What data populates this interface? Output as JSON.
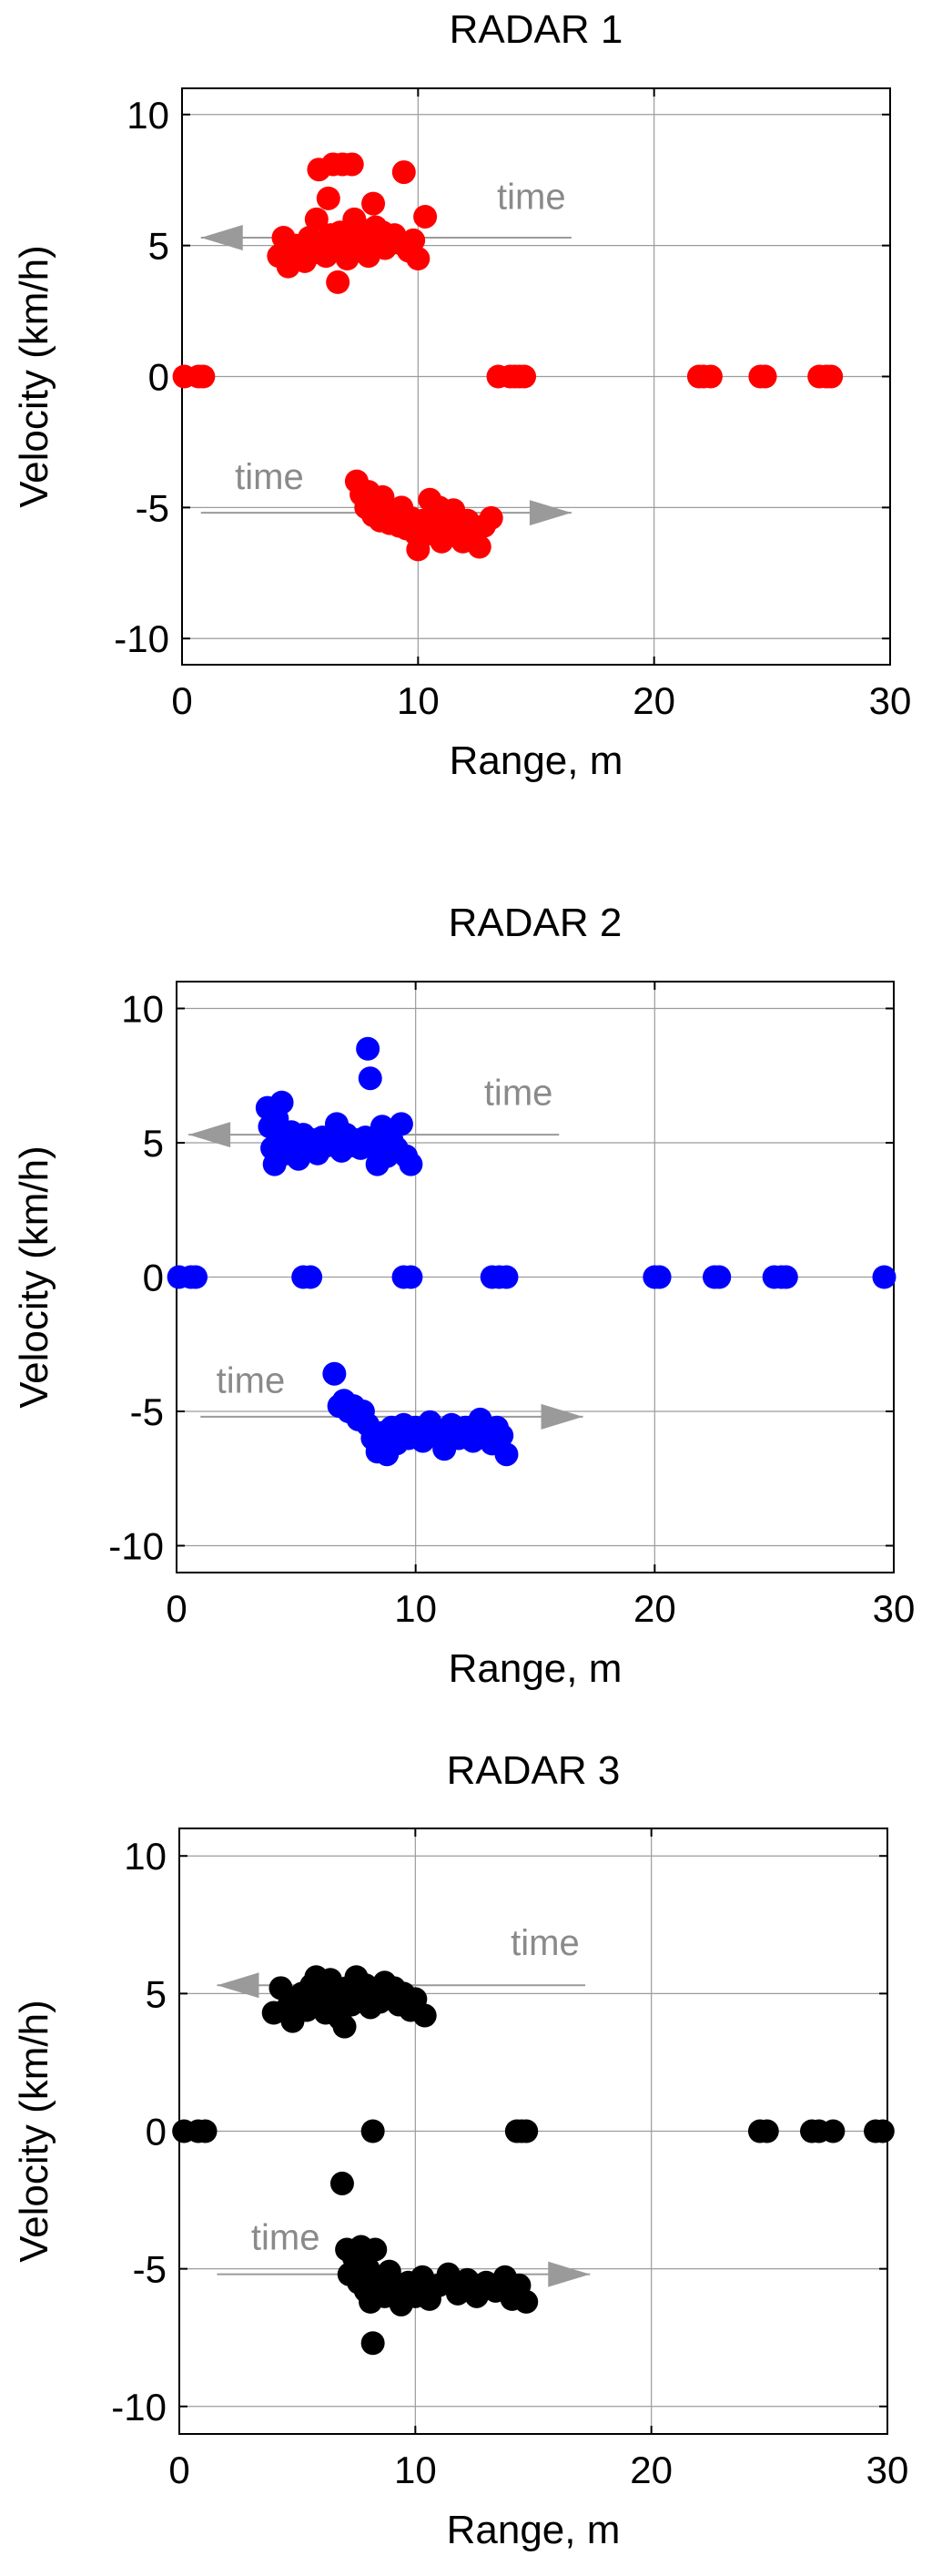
{
  "chart_data": [
    {
      "type": "scatter",
      "title": "RADAR 1",
      "xlabel": "Range, m",
      "ylabel": "Velocity (km/h)",
      "xlim": [
        0,
        30
      ],
      "ylim": [
        -11,
        11
      ],
      "xticks": [
        0,
        10,
        20,
        30
      ],
      "yticks": [
        10,
        5,
        0,
        -5,
        -10
      ],
      "grid": true,
      "color": "#ff0000",
      "annotations": [
        {
          "text": "time",
          "arrow": "left",
          "x_from": 16.5,
          "x_to": 0.8,
          "y": 5.3,
          "label_x": 14.8,
          "label_y": 6.4
        },
        {
          "text": "time",
          "arrow": "right",
          "x_from": 0.8,
          "x_to": 16.5,
          "y": -5.2,
          "label_x": 3.7,
          "label_y": -4.3
        }
      ],
      "points": [
        [
          0.1,
          0
        ],
        [
          0.7,
          0
        ],
        [
          0.9,
          0
        ],
        [
          13.4,
          0
        ],
        [
          13.9,
          0
        ],
        [
          14.1,
          0
        ],
        [
          14.3,
          0
        ],
        [
          14.5,
          0
        ],
        [
          21.9,
          0
        ],
        [
          22.1,
          0
        ],
        [
          22.4,
          0
        ],
        [
          24.5,
          0
        ],
        [
          24.7,
          0
        ],
        [
          27.0,
          0
        ],
        [
          27.3,
          0
        ],
        [
          27.5,
          0
        ],
        [
          4.1,
          4.6
        ],
        [
          4.3,
          5.3
        ],
        [
          4.5,
          4.2
        ],
        [
          4.8,
          5.0
        ],
        [
          5.0,
          4.8
        ],
        [
          5.2,
          4.4
        ],
        [
          5.4,
          5.3
        ],
        [
          5.5,
          4.7
        ],
        [
          5.7,
          6.0
        ],
        [
          5.8,
          7.9
        ],
        [
          5.9,
          5.0
        ],
        [
          6.1,
          4.6
        ],
        [
          6.2,
          6.8
        ],
        [
          6.3,
          5.4
        ],
        [
          6.4,
          8.1
        ],
        [
          6.5,
          5.0
        ],
        [
          6.6,
          3.6
        ],
        [
          6.7,
          5.5
        ],
        [
          6.8,
          8.1
        ],
        [
          6.9,
          4.8
        ],
        [
          7.0,
          4.5
        ],
        [
          7.1,
          5.1
        ],
        [
          7.2,
          8.1
        ],
        [
          7.3,
          6.0
        ],
        [
          7.4,
          4.9
        ],
        [
          7.5,
          5.3
        ],
        [
          7.6,
          5.6
        ],
        [
          7.8,
          5.0
        ],
        [
          7.9,
          4.6
        ],
        [
          8.0,
          5.3
        ],
        [
          8.1,
          6.6
        ],
        [
          8.2,
          5.7
        ],
        [
          8.4,
          5.2
        ],
        [
          8.5,
          5.5
        ],
        [
          8.6,
          4.9
        ],
        [
          8.8,
          5.1
        ],
        [
          9.0,
          5.4
        ],
        [
          9.2,
          5.1
        ],
        [
          9.4,
          7.8
        ],
        [
          9.6,
          4.8
        ],
        [
          9.8,
          5.2
        ],
        [
          10.0,
          4.5
        ],
        [
          10.3,
          6.1
        ],
        [
          7.4,
          -4.0
        ],
        [
          7.6,
          -4.5
        ],
        [
          7.8,
          -5.0
        ],
        [
          7.9,
          -4.4
        ],
        [
          8.1,
          -5.3
        ],
        [
          8.2,
          -4.8
        ],
        [
          8.4,
          -5.5
        ],
        [
          8.5,
          -4.6
        ],
        [
          8.7,
          -5.1
        ],
        [
          8.8,
          -5.6
        ],
        [
          9.0,
          -5.2
        ],
        [
          9.2,
          -5.7
        ],
        [
          9.3,
          -5.0
        ],
        [
          9.5,
          -5.8
        ],
        [
          9.7,
          -5.4
        ],
        [
          9.9,
          -6.0
        ],
        [
          10.0,
          -6.6
        ],
        [
          10.2,
          -5.5
        ],
        [
          10.4,
          -6.0
        ],
        [
          10.5,
          -4.7
        ],
        [
          10.7,
          -5.8
        ],
        [
          10.9,
          -5.0
        ],
        [
          11.0,
          -6.3
        ],
        [
          11.2,
          -5.5
        ],
        [
          11.4,
          -5.9
        ],
        [
          11.5,
          -5.1
        ],
        [
          11.7,
          -5.6
        ],
        [
          11.9,
          -6.3
        ],
        [
          12.1,
          -5.5
        ],
        [
          12.3,
          -5.9
        ],
        [
          12.6,
          -6.5
        ],
        [
          12.8,
          -5.7
        ],
        [
          13.1,
          -5.4
        ]
      ]
    },
    {
      "type": "scatter",
      "title": "RADAR 2",
      "xlabel": "Range, m",
      "ylabel": "Velocity (km/h)",
      "xlim": [
        0,
        30
      ],
      "ylim": [
        -11,
        11
      ],
      "xticks": [
        0,
        10,
        20,
        30
      ],
      "yticks": [
        10,
        5,
        0,
        -5,
        -10
      ],
      "grid": true,
      "color": "#0000ff",
      "annotations": [
        {
          "text": "time",
          "arrow": "left",
          "x_from": 16.0,
          "x_to": 0.5,
          "y": 5.3,
          "label_x": 14.3,
          "label_y": 6.4
        },
        {
          "text": "time",
          "arrow": "right",
          "x_from": 1.0,
          "x_to": 17.0,
          "y": -5.2,
          "label_x": 3.1,
          "label_y": -4.3
        }
      ],
      "points": [
        [
          0.1,
          0
        ],
        [
          0.6,
          0
        ],
        [
          0.8,
          0
        ],
        [
          5.3,
          0
        ],
        [
          5.6,
          0
        ],
        [
          9.5,
          0
        ],
        [
          9.8,
          0
        ],
        [
          13.2,
          0
        ],
        [
          13.5,
          0
        ],
        [
          13.8,
          0
        ],
        [
          20.0,
          0
        ],
        [
          20.2,
          0
        ],
        [
          22.5,
          0
        ],
        [
          22.7,
          0
        ],
        [
          25.0,
          0
        ],
        [
          25.3,
          0
        ],
        [
          25.5,
          0
        ],
        [
          29.6,
          0
        ],
        [
          3.8,
          6.3
        ],
        [
          3.9,
          5.6
        ],
        [
          4.0,
          4.8
        ],
        [
          4.1,
          4.2
        ],
        [
          4.2,
          5.9
        ],
        [
          4.4,
          6.5
        ],
        [
          4.5,
          5.1
        ],
        [
          4.6,
          4.6
        ],
        [
          4.8,
          5.4
        ],
        [
          5.0,
          5.0
        ],
        [
          5.1,
          4.4
        ],
        [
          5.3,
          5.3
        ],
        [
          5.5,
          4.8
        ],
        [
          5.7,
          5.1
        ],
        [
          5.9,
          4.6
        ],
        [
          6.1,
          5.2
        ],
        [
          6.3,
          4.9
        ],
        [
          6.5,
          5.0
        ],
        [
          6.7,
          5.7
        ],
        [
          6.9,
          4.7
        ],
        [
          7.1,
          5.3
        ],
        [
          7.3,
          4.9
        ],
        [
          7.5,
          5.1
        ],
        [
          7.7,
          4.8
        ],
        [
          7.9,
          5.2
        ],
        [
          8.0,
          8.5
        ],
        [
          8.1,
          7.4
        ],
        [
          8.2,
          5.0
        ],
        [
          8.4,
          4.2
        ],
        [
          8.6,
          5.6
        ],
        [
          8.8,
          4.5
        ],
        [
          9.0,
          5.1
        ],
        [
          9.2,
          4.8
        ],
        [
          9.4,
          5.7
        ],
        [
          9.6,
          4.5
        ],
        [
          9.8,
          4.2
        ],
        [
          6.6,
          -3.6
        ],
        [
          6.8,
          -4.8
        ],
        [
          7.0,
          -4.6
        ],
        [
          7.2,
          -5.0
        ],
        [
          7.4,
          -4.8
        ],
        [
          7.6,
          -5.3
        ],
        [
          7.8,
          -5.0
        ],
        [
          8.0,
          -5.5
        ],
        [
          8.2,
          -6.0
        ],
        [
          8.4,
          -6.5
        ],
        [
          8.6,
          -5.8
        ],
        [
          8.8,
          -6.6
        ],
        [
          9.0,
          -5.6
        ],
        [
          9.2,
          -6.2
        ],
        [
          9.5,
          -5.5
        ],
        [
          9.7,
          -6.0
        ],
        [
          10.0,
          -5.6
        ],
        [
          10.3,
          -6.1
        ],
        [
          10.6,
          -5.4
        ],
        [
          10.9,
          -5.9
        ],
        [
          11.2,
          -6.4
        ],
        [
          11.5,
          -5.5
        ],
        [
          11.8,
          -6.0
        ],
        [
          12.1,
          -5.6
        ],
        [
          12.4,
          -6.1
        ],
        [
          12.7,
          -5.3
        ],
        [
          13.0,
          -5.8
        ],
        [
          13.2,
          -6.2
        ],
        [
          13.4,
          -5.6
        ],
        [
          13.6,
          -5.9
        ],
        [
          13.8,
          -6.6
        ]
      ]
    },
    {
      "type": "scatter",
      "title": "RADAR 3",
      "xlabel": "Range, m",
      "ylabel": "Velocity (km/h)",
      "xlim": [
        0,
        30
      ],
      "ylim": [
        -11,
        11
      ],
      "xticks": [
        0,
        10,
        20,
        30
      ],
      "yticks": [
        10,
        5,
        0,
        -5,
        -10
      ],
      "grid": true,
      "color": "#000000",
      "annotations": [
        {
          "text": "time",
          "arrow": "left",
          "x_from": 17.2,
          "x_to": 1.6,
          "y": 5.3,
          "label_x": 15.5,
          "label_y": 6.4
        },
        {
          "text": "time",
          "arrow": "right",
          "x_from": 1.6,
          "x_to": 17.4,
          "y": -5.2,
          "label_x": 4.5,
          "label_y": -4.3
        }
      ],
      "points": [
        [
          0.2,
          0
        ],
        [
          0.8,
          0
        ],
        [
          1.1,
          0
        ],
        [
          8.2,
          0
        ],
        [
          14.3,
          0
        ],
        [
          14.5,
          0
        ],
        [
          14.7,
          0
        ],
        [
          24.6,
          0
        ],
        [
          24.9,
          0
        ],
        [
          26.8,
          0
        ],
        [
          27.1,
          0
        ],
        [
          27.7,
          0
        ],
        [
          29.5,
          0
        ],
        [
          29.8,
          0
        ],
        [
          4.0,
          4.3
        ],
        [
          4.3,
          5.2
        ],
        [
          4.6,
          4.5
        ],
        [
          4.8,
          4.0
        ],
        [
          5.0,
          4.7
        ],
        [
          5.2,
          5.0
        ],
        [
          5.4,
          4.4
        ],
        [
          5.6,
          5.3
        ],
        [
          5.8,
          5.6
        ],
        [
          6.0,
          4.8
        ],
        [
          6.2,
          4.3
        ],
        [
          6.4,
          5.5
        ],
        [
          6.6,
          4.9
        ],
        [
          6.8,
          4.1
        ],
        [
          7.0,
          3.8
        ],
        [
          7.1,
          5.2
        ],
        [
          7.3,
          4.6
        ],
        [
          7.5,
          5.6
        ],
        [
          7.7,
          4.8
        ],
        [
          7.9,
          5.3
        ],
        [
          8.1,
          4.5
        ],
        [
          8.3,
          5.0
        ],
        [
          8.5,
          4.7
        ],
        [
          8.7,
          5.4
        ],
        [
          8.9,
          4.9
        ],
        [
          9.1,
          5.2
        ],
        [
          9.3,
          4.6
        ],
        [
          9.5,
          5.0
        ],
        [
          9.8,
          4.4
        ],
        [
          10.0,
          4.8
        ],
        [
          10.4,
          4.2
        ],
        [
          6.9,
          -1.9
        ],
        [
          7.1,
          -4.3
        ],
        [
          7.2,
          -5.2
        ],
        [
          7.4,
          -4.6
        ],
        [
          7.6,
          -5.5
        ],
        [
          7.7,
          -4.2
        ],
        [
          7.9,
          -5.8
        ],
        [
          8.0,
          -5.0
        ],
        [
          8.1,
          -6.2
        ],
        [
          8.2,
          -7.7
        ],
        [
          8.3,
          -4.3
        ],
        [
          8.5,
          -5.4
        ],
        [
          8.7,
          -6.0
        ],
        [
          8.9,
          -5.1
        ],
        [
          9.1,
          -5.7
        ],
        [
          9.4,
          -6.3
        ],
        [
          9.7,
          -5.5
        ],
        [
          10.0,
          -6.0
        ],
        [
          10.3,
          -5.3
        ],
        [
          10.6,
          -6.1
        ],
        [
          11.0,
          -5.6
        ],
        [
          11.4,
          -5.2
        ],
        [
          11.8,
          -5.9
        ],
        [
          12.2,
          -5.4
        ],
        [
          12.6,
          -6.0
        ],
        [
          13.0,
          -5.5
        ],
        [
          13.4,
          -5.8
        ],
        [
          13.8,
          -5.3
        ],
        [
          14.1,
          -6.1
        ],
        [
          14.4,
          -5.6
        ],
        [
          14.7,
          -6.2
        ]
      ]
    }
  ]
}
